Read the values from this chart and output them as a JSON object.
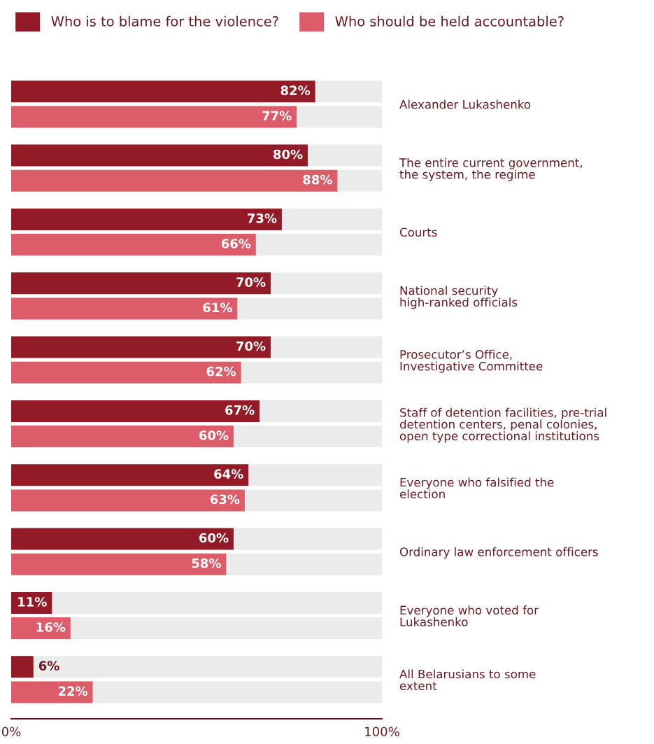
{
  "chart_data": {
    "type": "bar",
    "orientation": "horizontal",
    "categories": [
      "Alexander Lukashenko",
      "The entire current government,\nthe system, the regime",
      "Courts",
      "National security\nhigh-ranked officials",
      "Prosecutor’s Office,\nInvestigative Committee",
      "Staff of detention facilities, pre-trial\ndetention centers, penal colonies,\nopen type correctional institutions",
      "Everyone who falsified the\nelection",
      "Ordinary law enforcement officers",
      "Everyone who voted for\nLukashenko",
      "All Belarusians to some\nextent"
    ],
    "series": [
      {
        "name": "Who is to blame for the violence?",
        "color": "#921b27",
        "values": [
          82,
          80,
          73,
          70,
          70,
          67,
          64,
          60,
          11,
          6
        ],
        "value_labels": [
          "82%",
          "80%",
          "73%",
          "70%",
          "70%",
          "67%",
          "64%",
          "60%",
          "11%",
          "6%"
        ]
      },
      {
        "name": "Who should be held accountable?",
        "color": "#dd5c6a",
        "values": [
          77,
          88,
          66,
          61,
          62,
          60,
          63,
          58,
          16,
          22
        ],
        "value_labels": [
          "77%",
          "88%",
          "66%",
          "61%",
          "62%",
          "60%",
          "63%",
          "58%",
          "16%",
          "22%"
        ]
      }
    ],
    "xlim": [
      0,
      100
    ],
    "xticks": [
      {
        "value": 0,
        "label": "0%"
      },
      {
        "value": 100,
        "label": "100%"
      }
    ],
    "grid": false,
    "legend": "top"
  }
}
